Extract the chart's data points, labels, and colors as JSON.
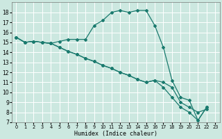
{
  "xlabel": "Humidex (Indice chaleur)",
  "xlim": [
    -0.5,
    23.5
  ],
  "ylim": [
    7,
    19
  ],
  "yticks": [
    7,
    8,
    9,
    10,
    11,
    12,
    13,
    14,
    15,
    16,
    17,
    18
  ],
  "xticks": [
    0,
    1,
    2,
    3,
    4,
    5,
    6,
    7,
    8,
    9,
    10,
    11,
    12,
    13,
    14,
    15,
    16,
    17,
    18,
    19,
    20,
    21,
    22,
    23
  ],
  "bg_color": "#cce8e0",
  "grid_color": "#ffffff",
  "line_color": "#1a7a6e",
  "line1_x": [
    0,
    1,
    2,
    3,
    4,
    5,
    6,
    7,
    8,
    9,
    10,
    11,
    12,
    13,
    14,
    15,
    16,
    17,
    18,
    19,
    20,
    21,
    22
  ],
  "line1_y": [
    15.5,
    15.0,
    15.1,
    15.0,
    14.9,
    15.1,
    15.3,
    15.3,
    15.3,
    16.7,
    17.2,
    18.0,
    18.2,
    18.0,
    18.2,
    18.2,
    16.7,
    14.5,
    11.2,
    9.5,
    9.2,
    7.2,
    8.5
  ],
  "line2_x": [
    0,
    1,
    2,
    3,
    4,
    5,
    6,
    7,
    8,
    9,
    10,
    11,
    12,
    13,
    14,
    15,
    16,
    17,
    18,
    19,
    20,
    21,
    22
  ],
  "line2_y": [
    15.5,
    15.0,
    15.1,
    15.0,
    14.9,
    14.5,
    14.1,
    13.8,
    13.4,
    13.1,
    12.7,
    12.4,
    12.0,
    11.7,
    11.3,
    11.0,
    11.2,
    11.0,
    10.5,
    9.0,
    8.5,
    8.0,
    8.3
  ],
  "line3_x": [
    0,
    1,
    2,
    3,
    4,
    5,
    6,
    7,
    8,
    9,
    10,
    11,
    12,
    13,
    14,
    15,
    16,
    17,
    18,
    19,
    20,
    21,
    22
  ],
  "line3_y": [
    15.5,
    15.0,
    15.1,
    15.0,
    14.9,
    14.5,
    14.1,
    13.8,
    13.4,
    13.1,
    12.7,
    12.4,
    12.0,
    11.7,
    11.3,
    11.0,
    11.2,
    10.5,
    9.5,
    8.5,
    8.0,
    7.2,
    8.5
  ]
}
